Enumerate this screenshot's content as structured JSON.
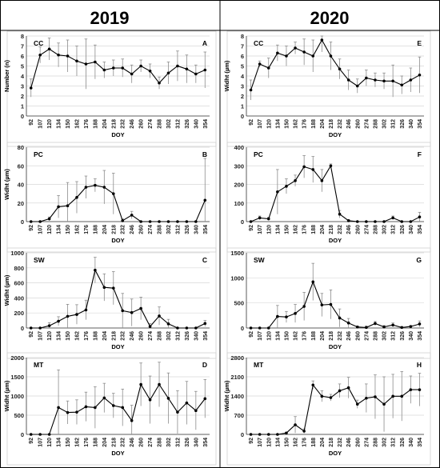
{
  "columns": [
    {
      "year": "2019"
    },
    {
      "year": "2020"
    }
  ],
  "axis": {
    "x_ticks": [
      "92",
      "107",
      "120",
      "134",
      "150",
      "162",
      "176",
      "188",
      "204",
      "218",
      "232",
      "246",
      "260",
      "274",
      "288",
      "302",
      "312",
      "326",
      "340",
      "354"
    ],
    "xlabel": "DOY"
  },
  "chart_data": [
    {
      "type": "line",
      "panel": "CC",
      "letter": "A",
      "year": "2019",
      "ylabel": "Number (n)",
      "ylim": [
        0,
        8
      ],
      "yticks": [
        0,
        1,
        2,
        3,
        4,
        5,
        6,
        7,
        8
      ],
      "x": [
        "92",
        "107",
        "120",
        "134",
        "150",
        "162",
        "176",
        "188",
        "204",
        "218",
        "232",
        "246",
        "260",
        "274",
        "288",
        "302",
        "312",
        "326",
        "340",
        "354"
      ],
      "values": [
        2.8,
        6.1,
        6.7,
        6.1,
        6.0,
        5.5,
        5.2,
        5.4,
        4.6,
        4.8,
        4.8,
        4.2,
        5.0,
        4.5,
        3.3,
        4.3,
        5.0,
        4.7,
        4.2,
        4.6
      ],
      "errors": [
        0.9,
        0.8,
        1.1,
        1.2,
        1.6,
        1.5,
        2.5,
        1.7,
        0.8,
        0.8,
        0.9,
        0.9,
        0.6,
        0.7,
        0.6,
        1.1,
        1.5,
        1.4,
        0.9,
        1.8
      ]
    },
    {
      "type": "line",
      "panel": "CC",
      "letter": "E",
      "year": "2020",
      "ylabel": "Widht (µm)",
      "ylim": [
        0,
        8
      ],
      "yticks": [
        0,
        1,
        2,
        3,
        4,
        5,
        6,
        7,
        8
      ],
      "x": [
        "92",
        "107",
        "120",
        "134",
        "150",
        "162",
        "176",
        "188",
        "204",
        "218",
        "232",
        "246",
        "260",
        "274",
        "288",
        "302",
        "312",
        "326",
        "340",
        "354"
      ],
      "values": [
        2.6,
        5.2,
        4.8,
        6.3,
        6.0,
        6.8,
        6.4,
        6.0,
        7.6,
        6.0,
        4.7,
        3.6,
        3.0,
        3.8,
        3.6,
        3.5,
        3.5,
        3.1,
        3.6,
        4.1
      ],
      "errors": [
        1.0,
        0.3,
        1.0,
        0.8,
        1.0,
        0.6,
        1.3,
        1.6,
        1.2,
        1.4,
        1.0,
        1.0,
        0.7,
        0.8,
        0.7,
        0.8,
        1.6,
        0.9,
        1.2,
        1.8
      ]
    },
    {
      "type": "line",
      "panel": "PC",
      "letter": "B",
      "year": "2019",
      "ylabel": "Widht (µm)",
      "ylim": [
        0,
        80
      ],
      "yticks": [
        0,
        20,
        40,
        60,
        80
      ],
      "x": [
        "92",
        "107",
        "120",
        "134",
        "150",
        "162",
        "176",
        "188",
        "204",
        "218",
        "232",
        "246",
        "260",
        "274",
        "288",
        "302",
        "312",
        "326",
        "340",
        "354"
      ],
      "values": [
        0,
        0,
        3,
        16,
        17,
        26,
        37,
        39,
        37,
        30,
        1,
        7,
        0,
        0,
        0,
        0,
        0,
        0,
        0,
        23
      ],
      "errors": [
        0,
        0,
        2,
        12,
        25,
        17,
        12,
        7,
        18,
        22,
        2,
        4,
        0,
        0,
        0,
        0,
        0,
        0,
        0,
        45
      ]
    },
    {
      "type": "line",
      "panel": "PC",
      "letter": "F",
      "year": "2020",
      "ylabel": "",
      "ylim": [
        0,
        400
      ],
      "yticks": [
        0,
        100,
        200,
        300,
        400
      ],
      "x": [
        "92",
        "107",
        "120",
        "134",
        "150",
        "162",
        "176",
        "188",
        "204",
        "218",
        "232",
        "246",
        "260",
        "274",
        "288",
        "302",
        "312",
        "326",
        "340",
        "354"
      ],
      "values": [
        0,
        20,
        15,
        160,
        190,
        220,
        295,
        280,
        220,
        300,
        40,
        5,
        0,
        0,
        0,
        0,
        20,
        0,
        0,
        25
      ],
      "errors": [
        0,
        10,
        8,
        120,
        40,
        30,
        60,
        70,
        60,
        10,
        20,
        5,
        0,
        0,
        0,
        0,
        10,
        0,
        0,
        25
      ]
    },
    {
      "type": "line",
      "panel": "SW",
      "letter": "C",
      "year": "2019",
      "ylabel": "Widht (µm)",
      "ylim": [
        0,
        1000
      ],
      "yticks": [
        0,
        200,
        400,
        600,
        800,
        1000
      ],
      "x": [
        "92",
        "107",
        "120",
        "134",
        "150",
        "162",
        "176",
        "188",
        "204",
        "218",
        "232",
        "246",
        "260",
        "274",
        "288",
        "302",
        "312",
        "326",
        "340",
        "354"
      ],
      "values": [
        0,
        0,
        30,
        90,
        155,
        180,
        240,
        770,
        540,
        530,
        230,
        205,
        260,
        20,
        160,
        55,
        0,
        0,
        0,
        60
      ],
      "errors": [
        0,
        0,
        40,
        60,
        160,
        130,
        130,
        170,
        180,
        220,
        230,
        180,
        150,
        40,
        120,
        60,
        0,
        0,
        0,
        40
      ]
    },
    {
      "type": "line",
      "panel": "SW",
      "letter": "G",
      "year": "2020",
      "ylabel": "",
      "ylim": [
        0,
        1500
      ],
      "yticks": [
        0,
        500,
        1000,
        1500
      ],
      "x": [
        "92",
        "107",
        "120",
        "134",
        "150",
        "162",
        "176",
        "188",
        "204",
        "218",
        "232",
        "246",
        "260",
        "274",
        "288",
        "302",
        "312",
        "326",
        "340",
        "354"
      ],
      "values": [
        0,
        0,
        0,
        230,
        220,
        290,
        430,
        920,
        460,
        470,
        200,
        100,
        20,
        10,
        90,
        20,
        60,
        10,
        30,
        80
      ],
      "errors": [
        0,
        0,
        0,
        220,
        110,
        180,
        280,
        370,
        230,
        290,
        180,
        90,
        20,
        30,
        40,
        30,
        40,
        20,
        20,
        60
      ]
    },
    {
      "type": "line",
      "panel": "MT",
      "letter": "D",
      "year": "2019",
      "ylabel": "Widht (µm)",
      "ylim": [
        0,
        2000
      ],
      "yticks": [
        0,
        500,
        1000,
        1500,
        2000
      ],
      "x": [
        "92",
        "107",
        "120",
        "134",
        "150",
        "162",
        "176",
        "188",
        "204",
        "218",
        "232",
        "246",
        "260",
        "274",
        "288",
        "302",
        "312",
        "326",
        "340",
        "354"
      ],
      "values": [
        0,
        0,
        0,
        700,
        570,
        580,
        720,
        700,
        950,
        750,
        700,
        360,
        1300,
        900,
        1300,
        940,
        580,
        820,
        620,
        930
      ],
      "errors": [
        0,
        0,
        0,
        980,
        300,
        320,
        380,
        540,
        380,
        320,
        480,
        400,
        560,
        620,
        580,
        660,
        560,
        560,
        500,
        500
      ]
    },
    {
      "type": "line",
      "panel": "MT",
      "letter": "H",
      "year": "2020",
      "ylabel": "Widht (µm)",
      "ylim": [
        0,
        2800
      ],
      "yticks": [
        0,
        700,
        1400,
        2100,
        2800
      ],
      "x": [
        "92",
        "107",
        "120",
        "134",
        "150",
        "162",
        "176",
        "188",
        "204",
        "218",
        "232",
        "246",
        "260",
        "274",
        "288",
        "302",
        "312",
        "326",
        "340",
        "354"
      ],
      "values": [
        0,
        0,
        0,
        0,
        50,
        350,
        120,
        1800,
        1390,
        1340,
        1590,
        1700,
        1100,
        1320,
        1370,
        1100,
        1390,
        1390,
        1630,
        1630
      ],
      "errors": [
        0,
        0,
        0,
        0,
        30,
        300,
        80,
        150,
        200,
        120,
        250,
        380,
        150,
        520,
        800,
        1000,
        800,
        900,
        500,
        600
      ]
    }
  ]
}
